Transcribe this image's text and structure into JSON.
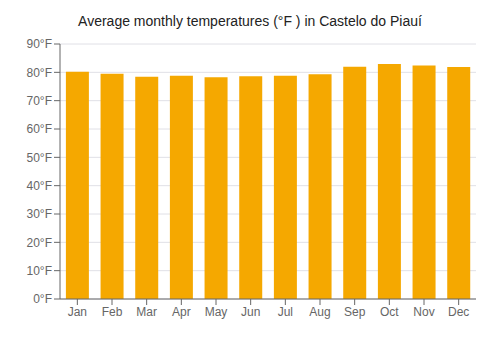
{
  "chart_data": {
    "type": "bar",
    "title": "Average monthly temperatures (°F ) in Castelo do Piauí",
    "categories": [
      "Jan",
      "Feb",
      "Mar",
      "Apr",
      "May",
      "Jun",
      "Jul",
      "Aug",
      "Sep",
      "Oct",
      "Nov",
      "Dec"
    ],
    "values": [
      80.2,
      79.5,
      78.4,
      78.8,
      78.3,
      78.6,
      78.8,
      79.3,
      82.0,
      82.9,
      82.4,
      81.9
    ],
    "color": "#F5A800",
    "ylim": [
      0,
      90
    ],
    "yticks": [
      {
        "value": 0,
        "label": "0°F"
      },
      {
        "value": 10,
        "label": "10°F"
      },
      {
        "value": 20,
        "label": "20°F"
      },
      {
        "value": 30,
        "label": "30°F"
      },
      {
        "value": 40,
        "label": "40°F"
      },
      {
        "value": 50,
        "label": "50°F"
      },
      {
        "value": 60,
        "label": "60°F"
      },
      {
        "value": 70,
        "label": "70°F"
      },
      {
        "value": 80,
        "label": "80°F"
      },
      {
        "value": 90,
        "label": "90°F"
      }
    ],
    "grid": true
  }
}
